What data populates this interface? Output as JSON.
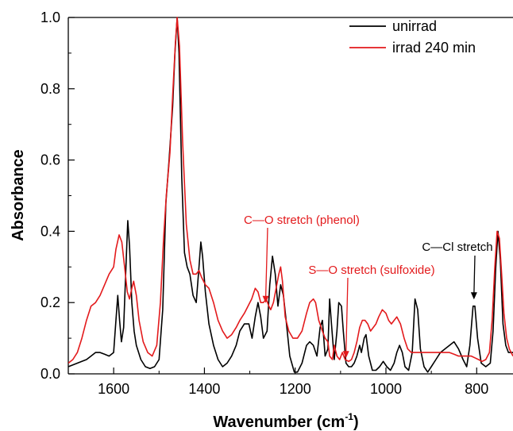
{
  "chart_data": {
    "type": "line",
    "xlabel": "Wavenumber (cm",
    "xlabel_sup": "-1",
    "xlabel_close": ")",
    "ylabel": "Absorbance",
    "xlim": [
      1700,
      720
    ],
    "ylim": [
      0,
      1.0
    ],
    "x_ticks": [
      1600,
      1400,
      1200,
      1000,
      800
    ],
    "x_tick_labels": [
      "1600",
      "1400",
      "1200",
      "1000",
      "800"
    ],
    "y_ticks": [
      0.0,
      0.2,
      0.4,
      0.6,
      0.8,
      1.0
    ],
    "y_tick_labels": [
      "0.0",
      "0.2",
      "0.4",
      "0.6",
      "0.8",
      "1.0"
    ],
    "grid": false,
    "legend_position": "top-right",
    "series": [
      {
        "name": "unirrad",
        "color": "#000000",
        "points": [
          [
            1700,
            0.02
          ],
          [
            1690,
            0.025
          ],
          [
            1680,
            0.03
          ],
          [
            1670,
            0.035
          ],
          [
            1660,
            0.04
          ],
          [
            1650,
            0.05
          ],
          [
            1640,
            0.06
          ],
          [
            1630,
            0.06
          ],
          [
            1620,
            0.055
          ],
          [
            1610,
            0.05
          ],
          [
            1600,
            0.06
          ],
          [
            1595,
            0.15
          ],
          [
            1591,
            0.22
          ],
          [
            1587,
            0.15
          ],
          [
            1583,
            0.09
          ],
          [
            1578,
            0.13
          ],
          [
            1573,
            0.3
          ],
          [
            1569,
            0.43
          ],
          [
            1565,
            0.36
          ],
          [
            1560,
            0.2
          ],
          [
            1555,
            0.12
          ],
          [
            1550,
            0.08
          ],
          [
            1540,
            0.04
          ],
          [
            1530,
            0.02
          ],
          [
            1520,
            0.015
          ],
          [
            1510,
            0.02
          ],
          [
            1500,
            0.04
          ],
          [
            1492,
            0.18
          ],
          [
            1485,
            0.48
          ],
          [
            1478,
            0.6
          ],
          [
            1470,
            0.75
          ],
          [
            1465,
            0.9
          ],
          [
            1460,
            1.0
          ],
          [
            1456,
            0.9
          ],
          [
            1450,
            0.55
          ],
          [
            1444,
            0.34
          ],
          [
            1438,
            0.3
          ],
          [
            1432,
            0.28
          ],
          [
            1425,
            0.22
          ],
          [
            1418,
            0.2
          ],
          [
            1412,
            0.3
          ],
          [
            1408,
            0.37
          ],
          [
            1404,
            0.33
          ],
          [
            1398,
            0.23
          ],
          [
            1390,
            0.14
          ],
          [
            1380,
            0.08
          ],
          [
            1370,
            0.04
          ],
          [
            1360,
            0.02
          ],
          [
            1350,
            0.03
          ],
          [
            1340,
            0.05
          ],
          [
            1330,
            0.08
          ],
          [
            1322,
            0.12
          ],
          [
            1312,
            0.14
          ],
          [
            1302,
            0.14
          ],
          [
            1295,
            0.1
          ],
          [
            1288,
            0.16
          ],
          [
            1282,
            0.2
          ],
          [
            1276,
            0.16
          ],
          [
            1270,
            0.1
          ],
          [
            1262,
            0.12
          ],
          [
            1256,
            0.25
          ],
          [
            1250,
            0.33
          ],
          [
            1244,
            0.28
          ],
          [
            1238,
            0.19
          ],
          [
            1232,
            0.25
          ],
          [
            1226,
            0.22
          ],
          [
            1220,
            0.15
          ],
          [
            1212,
            0.05
          ],
          [
            1202,
            0.005
          ],
          [
            1195,
            0.005
          ],
          [
            1185,
            0.03
          ],
          [
            1175,
            0.08
          ],
          [
            1168,
            0.09
          ],
          [
            1160,
            0.08
          ],
          [
            1152,
            0.05
          ],
          [
            1145,
            0.13
          ],
          [
            1140,
            0.15
          ],
          [
            1134,
            0.05
          ],
          [
            1128,
            0.07
          ],
          [
            1124,
            0.21
          ],
          [
            1120,
            0.14
          ],
          [
            1114,
            0.04
          ],
          [
            1108,
            0.12
          ],
          [
            1104,
            0.2
          ],
          [
            1098,
            0.19
          ],
          [
            1094,
            0.12
          ],
          [
            1088,
            0.03
          ],
          [
            1082,
            0.02
          ],
          [
            1076,
            0.02
          ],
          [
            1070,
            0.03
          ],
          [
            1064,
            0.05
          ],
          [
            1058,
            0.08
          ],
          [
            1054,
            0.06
          ],
          [
            1048,
            0.1
          ],
          [
            1044,
            0.11
          ],
          [
            1038,
            0.05
          ],
          [
            1030,
            0.01
          ],
          [
            1022,
            0.01
          ],
          [
            1014,
            0.02
          ],
          [
            1006,
            0.035
          ],
          [
            998,
            0.02
          ],
          [
            990,
            0.01
          ],
          [
            982,
            0.03
          ],
          [
            976,
            0.06
          ],
          [
            970,
            0.08
          ],
          [
            964,
            0.06
          ],
          [
            958,
            0.02
          ],
          [
            950,
            0.01
          ],
          [
            942,
            0.06
          ],
          [
            936,
            0.21
          ],
          [
            930,
            0.18
          ],
          [
            924,
            0.07
          ],
          [
            916,
            0.02
          ],
          [
            908,
            0.005
          ],
          [
            900,
            0.02
          ],
          [
            890,
            0.04
          ],
          [
            880,
            0.06
          ],
          [
            870,
            0.07
          ],
          [
            860,
            0.08
          ],
          [
            850,
            0.09
          ],
          [
            840,
            0.07
          ],
          [
            830,
            0.04
          ],
          [
            822,
            0.02
          ],
          [
            815,
            0.08
          ],
          [
            808,
            0.19
          ],
          [
            804,
            0.19
          ],
          [
            798,
            0.1
          ],
          [
            790,
            0.03
          ],
          [
            780,
            0.02
          ],
          [
            770,
            0.03
          ],
          [
            764,
            0.12
          ],
          [
            758,
            0.3
          ],
          [
            753,
            0.4
          ],
          [
            748,
            0.32
          ],
          [
            742,
            0.14
          ],
          [
            736,
            0.08
          ],
          [
            730,
            0.06
          ],
          [
            725,
            0.06
          ],
          [
            720,
            0.06
          ]
        ]
      },
      {
        "name": "irrad 240 min",
        "color": "#e31a1c",
        "points": [
          [
            1700,
            0.03
          ],
          [
            1690,
            0.04
          ],
          [
            1680,
            0.06
          ],
          [
            1670,
            0.1
          ],
          [
            1660,
            0.15
          ],
          [
            1650,
            0.19
          ],
          [
            1640,
            0.2
          ],
          [
            1630,
            0.22
          ],
          [
            1620,
            0.25
          ],
          [
            1610,
            0.28
          ],
          [
            1600,
            0.3
          ],
          [
            1595,
            0.35
          ],
          [
            1588,
            0.39
          ],
          [
            1582,
            0.37
          ],
          [
            1576,
            0.3
          ],
          [
            1570,
            0.23
          ],
          [
            1565,
            0.21
          ],
          [
            1560,
            0.24
          ],
          [
            1556,
            0.26
          ],
          [
            1550,
            0.22
          ],
          [
            1544,
            0.15
          ],
          [
            1535,
            0.09
          ],
          [
            1525,
            0.06
          ],
          [
            1515,
            0.05
          ],
          [
            1505,
            0.08
          ],
          [
            1497,
            0.2
          ],
          [
            1490,
            0.38
          ],
          [
            1484,
            0.5
          ],
          [
            1476,
            0.62
          ],
          [
            1470,
            0.78
          ],
          [
            1464,
            0.93
          ],
          [
            1460,
            1.0
          ],
          [
            1455,
            0.92
          ],
          [
            1448,
            0.65
          ],
          [
            1440,
            0.42
          ],
          [
            1432,
            0.32
          ],
          [
            1425,
            0.28
          ],
          [
            1418,
            0.28
          ],
          [
            1412,
            0.29
          ],
          [
            1406,
            0.27
          ],
          [
            1398,
            0.25
          ],
          [
            1390,
            0.24
          ],
          [
            1380,
            0.2
          ],
          [
            1370,
            0.15
          ],
          [
            1360,
            0.12
          ],
          [
            1350,
            0.1
          ],
          [
            1340,
            0.11
          ],
          [
            1330,
            0.13
          ],
          [
            1322,
            0.15
          ],
          [
            1312,
            0.17
          ],
          [
            1304,
            0.19
          ],
          [
            1296,
            0.21
          ],
          [
            1288,
            0.24
          ],
          [
            1282,
            0.23
          ],
          [
            1276,
            0.2
          ],
          [
            1270,
            0.2
          ],
          [
            1264,
            0.21
          ],
          [
            1258,
            0.19
          ],
          [
            1254,
            0.18
          ],
          [
            1248,
            0.2
          ],
          [
            1242,
            0.24
          ],
          [
            1236,
            0.28
          ],
          [
            1232,
            0.3
          ],
          [
            1228,
            0.26
          ],
          [
            1222,
            0.16
          ],
          [
            1214,
            0.12
          ],
          [
            1205,
            0.1
          ],
          [
            1195,
            0.1
          ],
          [
            1185,
            0.12
          ],
          [
            1175,
            0.17
          ],
          [
            1168,
            0.2
          ],
          [
            1160,
            0.21
          ],
          [
            1155,
            0.2
          ],
          [
            1148,
            0.15
          ],
          [
            1140,
            0.12
          ],
          [
            1134,
            0.1
          ],
          [
            1128,
            0.09
          ],
          [
            1124,
            0.05
          ],
          [
            1118,
            0.04
          ],
          [
            1114,
            0.08
          ],
          [
            1108,
            0.05
          ],
          [
            1102,
            0.04
          ],
          [
            1096,
            0.06
          ],
          [
            1090,
            0.04
          ],
          [
            1082,
            0.035
          ],
          [
            1076,
            0.04
          ],
          [
            1070,
            0.06
          ],
          [
            1064,
            0.09
          ],
          [
            1058,
            0.13
          ],
          [
            1052,
            0.15
          ],
          [
            1046,
            0.15
          ],
          [
            1040,
            0.14
          ],
          [
            1034,
            0.12
          ],
          [
            1028,
            0.13
          ],
          [
            1022,
            0.14
          ],
          [
            1016,
            0.16
          ],
          [
            1008,
            0.18
          ],
          [
            1000,
            0.17
          ],
          [
            994,
            0.15
          ],
          [
            988,
            0.14
          ],
          [
            982,
            0.15
          ],
          [
            976,
            0.16
          ],
          [
            968,
            0.14
          ],
          [
            960,
            0.1
          ],
          [
            952,
            0.07
          ],
          [
            944,
            0.06
          ],
          [
            936,
            0.06
          ],
          [
            928,
            0.06
          ],
          [
            920,
            0.06
          ],
          [
            910,
            0.06
          ],
          [
            900,
            0.06
          ],
          [
            890,
            0.06
          ],
          [
            880,
            0.06
          ],
          [
            870,
            0.06
          ],
          [
            860,
            0.06
          ],
          [
            850,
            0.055
          ],
          [
            840,
            0.05
          ],
          [
            830,
            0.05
          ],
          [
            820,
            0.05
          ],
          [
            812,
            0.05
          ],
          [
            804,
            0.045
          ],
          [
            796,
            0.04
          ],
          [
            788,
            0.035
          ],
          [
            780,
            0.04
          ],
          [
            772,
            0.06
          ],
          [
            766,
            0.15
          ],
          [
            760,
            0.3
          ],
          [
            755,
            0.4
          ],
          [
            750,
            0.38
          ],
          [
            745,
            0.28
          ],
          [
            740,
            0.17
          ],
          [
            734,
            0.1
          ],
          [
            728,
            0.07
          ],
          [
            720,
            0.05
          ]
        ]
      }
    ],
    "annotations": [
      {
        "text": "C—O stretch (phenol)",
        "color": "#e31a1c",
        "target_x": 1265,
        "target_y": 0.19
      },
      {
        "text": "S—O stretch (sulfoxide)",
        "color": "#e31a1c",
        "target_x": 1088,
        "target_y": 0.035
      },
      {
        "text": "C—Cl stretch",
        "color": "#000000",
        "target_x": 806,
        "target_y": 0.2
      }
    ]
  }
}
